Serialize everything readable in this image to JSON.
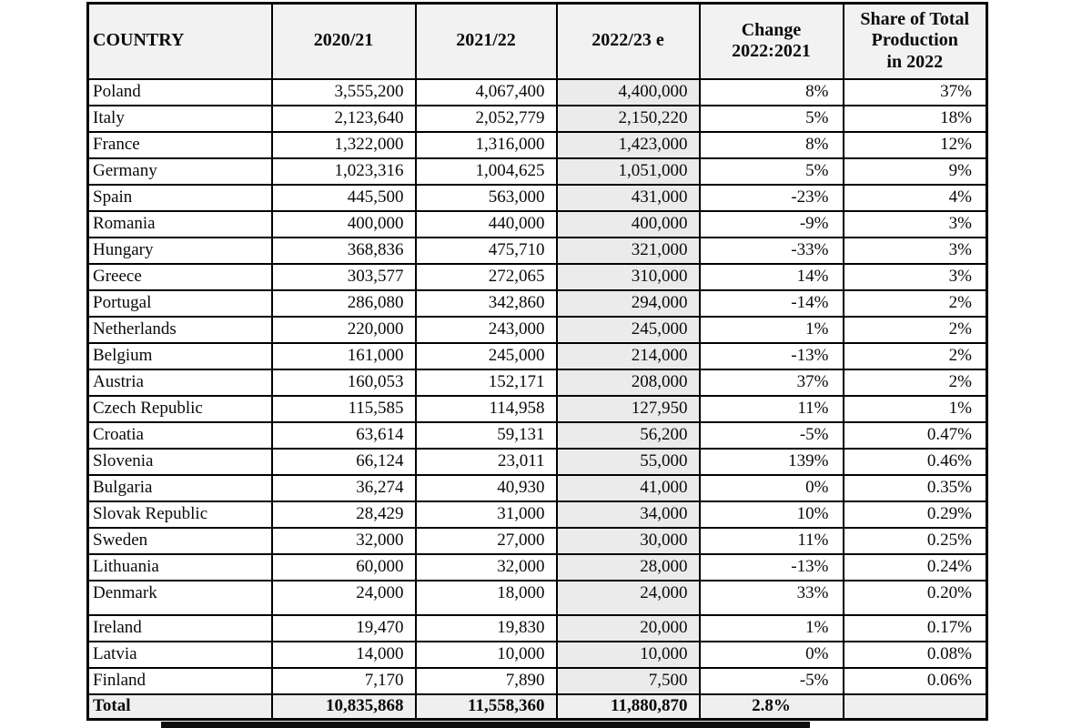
{
  "table": {
    "columns": [
      {
        "key": "country",
        "label": "COUNTRY"
      },
      {
        "key": "y2020",
        "label": "2020/21"
      },
      {
        "key": "y2021",
        "label": "2021/22"
      },
      {
        "key": "y2022",
        "label": "2022/23 e"
      },
      {
        "key": "change",
        "label": "Change\n2022:2021"
      },
      {
        "key": "share",
        "label": "Share of Total\nProduction\nin 2022"
      }
    ],
    "rows": [
      {
        "country": "Poland",
        "y2020": "3,555,200",
        "y2021": "4,067,400",
        "y2022": "4,400,000",
        "change": "8%",
        "share": "37%"
      },
      {
        "country": "Italy",
        "y2020": "2,123,640",
        "y2021": "2,052,779",
        "y2022": "2,150,220",
        "change": "5%",
        "share": "18%"
      },
      {
        "country": "France",
        "y2020": "1,322,000",
        "y2021": "1,316,000",
        "y2022": "1,423,000",
        "change": "8%",
        "share": "12%"
      },
      {
        "country": "Germany",
        "y2020": "1,023,316",
        "y2021": "1,004,625",
        "y2022": "1,051,000",
        "change": "5%",
        "share": "9%"
      },
      {
        "country": "Spain",
        "y2020": "445,500",
        "y2021": "563,000",
        "y2022": "431,000",
        "change": "-23%",
        "share": "4%"
      },
      {
        "country": "Romania",
        "y2020": "400,000",
        "y2021": "440,000",
        "y2022": "400,000",
        "change": "-9%",
        "share": "3%"
      },
      {
        "country": "Hungary",
        "y2020": "368,836",
        "y2021": "475,710",
        "y2022": "321,000",
        "change": "-33%",
        "share": "3%"
      },
      {
        "country": "Greece",
        "y2020": "303,577",
        "y2021": "272,065",
        "y2022": "310,000",
        "change": "14%",
        "share": "3%"
      },
      {
        "country": "Portugal",
        "y2020": "286,080",
        "y2021": "342,860",
        "y2022": "294,000",
        "change": "-14%",
        "share": "2%"
      },
      {
        "country": "Netherlands",
        "y2020": "220,000",
        "y2021": "243,000",
        "y2022": "245,000",
        "change": "1%",
        "share": "2%"
      },
      {
        "country": "Belgium",
        "y2020": "161,000",
        "y2021": "245,000",
        "y2022": "214,000",
        "change": "-13%",
        "share": "2%"
      },
      {
        "country": "Austria",
        "y2020": "160,053",
        "y2021": "152,171",
        "y2022": "208,000",
        "change": "37%",
        "share": "2%"
      },
      {
        "country": "Czech Republic",
        "y2020": "115,585",
        "y2021": "114,958",
        "y2022": "127,950",
        "change": "11%",
        "share": "1%"
      },
      {
        "country": "Croatia",
        "y2020": "63,614",
        "y2021": "59,131",
        "y2022": "56,200",
        "change": "-5%",
        "share": "0.47%"
      },
      {
        "country": "Slovenia",
        "y2020": "66,124",
        "y2021": "23,011",
        "y2022": "55,000",
        "change": "139%",
        "share": "0.46%"
      },
      {
        "country": "Bulgaria",
        "y2020": "36,274",
        "y2021": "40,930",
        "y2022": "41,000",
        "change": "0%",
        "share": "0.35%"
      },
      {
        "country": "Slovak Republic",
        "y2020": "28,429",
        "y2021": "31,000",
        "y2022": "34,000",
        "change": "10%",
        "share": "0.29%"
      },
      {
        "country": "Sweden",
        "y2020": "32,000",
        "y2021": "27,000",
        "y2022": "30,000",
        "change": "11%",
        "share": "0.25%"
      },
      {
        "country": "Lithuania",
        "y2020": "60,000",
        "y2021": "32,000",
        "y2022": "28,000",
        "change": "-13%",
        "share": "0.24%"
      },
      {
        "country": "Denmark",
        "y2020": "24,000",
        "y2021": "18,000",
        "y2022": "24,000",
        "change": "33%",
        "share": "0.20%",
        "tall": true
      },
      {
        "country": "Ireland",
        "y2020": "19,470",
        "y2021": "19,830",
        "y2022": "20,000",
        "change": "1%",
        "share": "0.17%"
      },
      {
        "country": "Latvia",
        "y2020": "14,000",
        "y2021": "10,000",
        "y2022": "10,000",
        "change": "0%",
        "share": "0.08%"
      },
      {
        "country": "Finland",
        "y2020": "7,170",
        "y2021": "7,890",
        "y2022": "7,500",
        "change": "-5%",
        "share": "0.06%"
      }
    ],
    "total": {
      "country": "Total",
      "y2020": "10,835,868",
      "y2021": "11,558,360",
      "y2022": "11,880,870",
      "change": "2.8%",
      "share": ""
    },
    "colors": {
      "header_bg": "#f2f2f2",
      "estimate_column_bg": "#ebebeb",
      "total_row_bg": "#efefef",
      "border": "#000000",
      "cell_bg": "#ffffff",
      "text": "#0a0a0a"
    }
  }
}
